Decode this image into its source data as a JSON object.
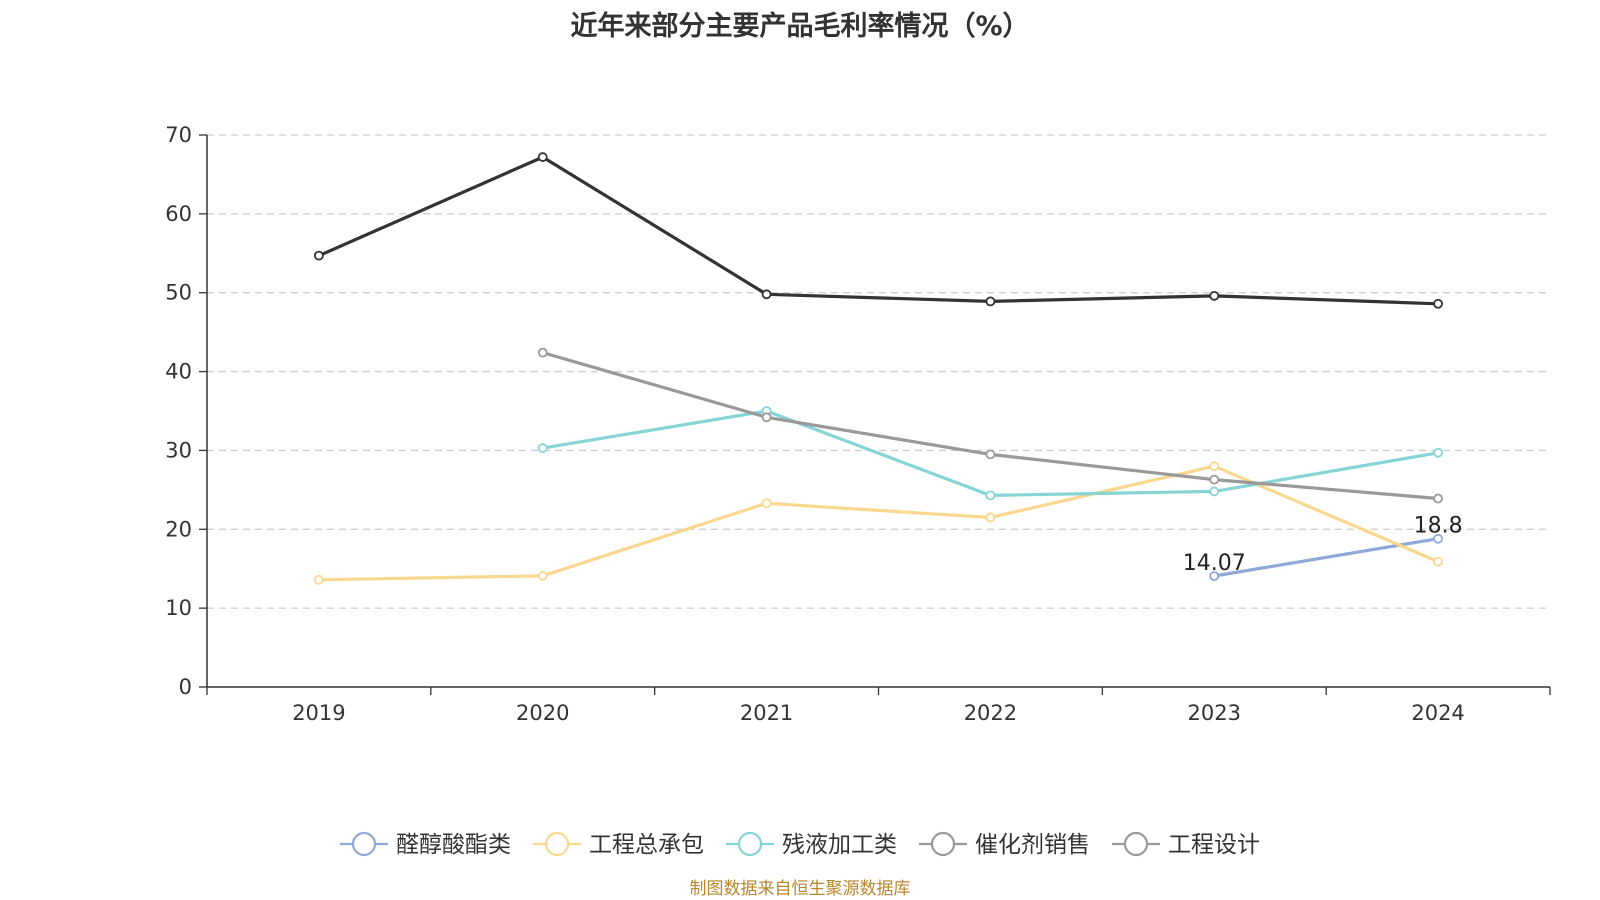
{
  "title": "近年来部分主要产品毛利率情况（%）",
  "source": "制图数据来自恒生聚源数据库",
  "chart_data": {
    "type": "line",
    "title": "近年来部分主要产品毛利率情况（%）",
    "x": [
      "2019",
      "2020",
      "2021",
      "2022",
      "2023",
      "2024"
    ],
    "ylim": [
      0,
      70
    ],
    "yticks": [
      0,
      10,
      20,
      30,
      40,
      50,
      60,
      70
    ],
    "grid": true,
    "legend_position": "bottom",
    "series": [
      {
        "name": "醛醇酸酯类",
        "color": "#8ea9d8",
        "values": [
          null,
          null,
          null,
          null,
          14.07,
          18.8
        ],
        "labels": [
          null,
          null,
          null,
          null,
          "14.07",
          "18.8"
        ]
      },
      {
        "name": "工程总承包",
        "color": "#fad78f",
        "values": [
          13.6,
          14.1,
          23.3,
          21.5,
          28.0,
          15.9
        ]
      },
      {
        "name": "残液加工类",
        "color": "#86d4d6",
        "values": [
          null,
          30.3,
          35.0,
          24.3,
          24.8,
          29.7
        ]
      },
      {
        "name": "催化剂销售",
        "color": "#333333",
        "values": [
          54.7,
          67.2,
          49.8,
          48.9,
          49.6,
          48.6
        ]
      },
      {
        "name": "工程设计",
        "color": "#999999",
        "values": [
          null,
          42.4,
          34.2,
          29.5,
          26.3,
          23.9
        ]
      }
    ],
    "legend_colors": [
      "#8ea9d8",
      "#fad78f",
      "#86d4d6",
      "#999999",
      "#999999"
    ]
  }
}
